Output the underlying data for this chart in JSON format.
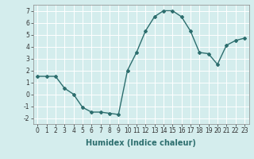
{
  "x": [
    0,
    1,
    2,
    3,
    4,
    5,
    6,
    7,
    8,
    9,
    10,
    11,
    12,
    13,
    14,
    15,
    16,
    17,
    18,
    19,
    20,
    21,
    22,
    23
  ],
  "y": [
    1.5,
    1.5,
    1.5,
    0.5,
    0.0,
    -1.1,
    -1.5,
    -1.5,
    -1.6,
    -1.7,
    2.0,
    3.5,
    5.3,
    6.5,
    7.0,
    7.0,
    6.5,
    5.3,
    3.5,
    3.4,
    2.5,
    4.1,
    4.5,
    4.7
  ],
  "line_color": "#2d6e6e",
  "marker": "D",
  "marker_size": 2.0,
  "bg_color": "#d4eded",
  "grid_color": "#ffffff",
  "xlabel": "Humidex (Indice chaleur)",
  "xlim": [
    -0.5,
    23.5
  ],
  "ylim": [
    -2.5,
    7.5
  ],
  "yticks": [
    -2,
    -1,
    0,
    1,
    2,
    3,
    4,
    5,
    6,
    7
  ],
  "xticks": [
    0,
    1,
    2,
    3,
    4,
    5,
    6,
    7,
    8,
    9,
    10,
    11,
    12,
    13,
    14,
    15,
    16,
    17,
    18,
    19,
    20,
    21,
    22,
    23
  ],
  "tick_fontsize": 5.5,
  "xlabel_fontsize": 7.0,
  "line_width": 1.0
}
